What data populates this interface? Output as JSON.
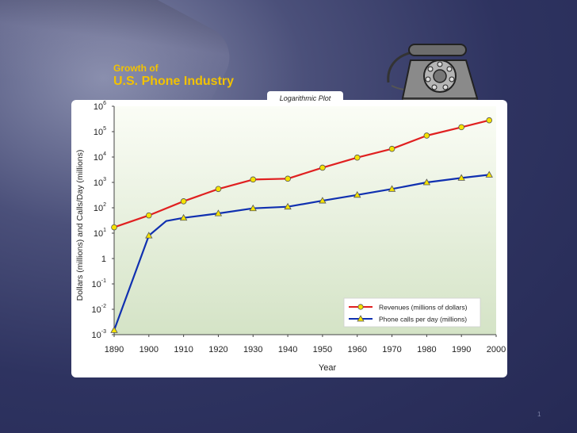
{
  "slide": {
    "title_line1": "Growth of",
    "title_line2": "U.S. Phone Industry",
    "tab_label": "Logarithmic Plot",
    "page_number": "1"
  },
  "colors": {
    "background": "#2e3360",
    "title": "#f2c200",
    "plot_bg_top": "#fbfdf6",
    "plot_bg_bottom": "#d4e3c6",
    "revenue_line": "#e02020",
    "calls_line": "#1030b0",
    "marker_fill": "#f5e200"
  },
  "chart_data": {
    "type": "line",
    "xlabel": "Year",
    "ylabel": "Dollars (millions) and Calls/Day (millions)",
    "yscale": "log",
    "xlim": [
      1890,
      2000
    ],
    "ylim_exponent": [
      -3,
      6
    ],
    "x_ticks": [
      "1890",
      "1900",
      "1910",
      "1920",
      "1930",
      "1940",
      "1950",
      "1960",
      "1970",
      "1980",
      "1990",
      "2000"
    ],
    "y_ticks": [
      {
        "base": "10",
        "exp": "6",
        "e": 6
      },
      {
        "base": "10",
        "exp": "5",
        "e": 5
      },
      {
        "base": "10",
        "exp": "4",
        "e": 4
      },
      {
        "base": "10",
        "exp": "3",
        "e": 3
      },
      {
        "base": "10",
        "exp": "2",
        "e": 2
      },
      {
        "base": "10",
        "exp": "1",
        "e": 1
      },
      {
        "base": "1",
        "exp": "",
        "e": 0
      },
      {
        "base": "10",
        "exp": "-1",
        "e": -1
      },
      {
        "base": "10",
        "exp": "-2",
        "e": -2
      },
      {
        "base": "10",
        "exp": "-3",
        "e": -3
      }
    ],
    "legend_position": "bottom-right",
    "series": [
      {
        "name": "Revenues (millions of dollars)",
        "marker": "circle",
        "x": [
          1890,
          1900,
          1910,
          1920,
          1930,
          1940,
          1950,
          1960,
          1970,
          1980,
          1990,
          1998
        ],
        "y": [
          17,
          50,
          180,
          550,
          1300,
          1400,
          3800,
          9500,
          21000,
          70000,
          150000,
          280000
        ]
      },
      {
        "name": "Phone calls per day (millions)",
        "marker": "triangle",
        "x": [
          1890,
          1900,
          1905,
          1910,
          1920,
          1930,
          1940,
          1950,
          1960,
          1970,
          1980,
          1990,
          1998
        ],
        "y": [
          0.0015,
          8,
          30,
          40,
          60,
          95,
          110,
          190,
          320,
          550,
          1000,
          1500,
          2000
        ]
      }
    ]
  }
}
